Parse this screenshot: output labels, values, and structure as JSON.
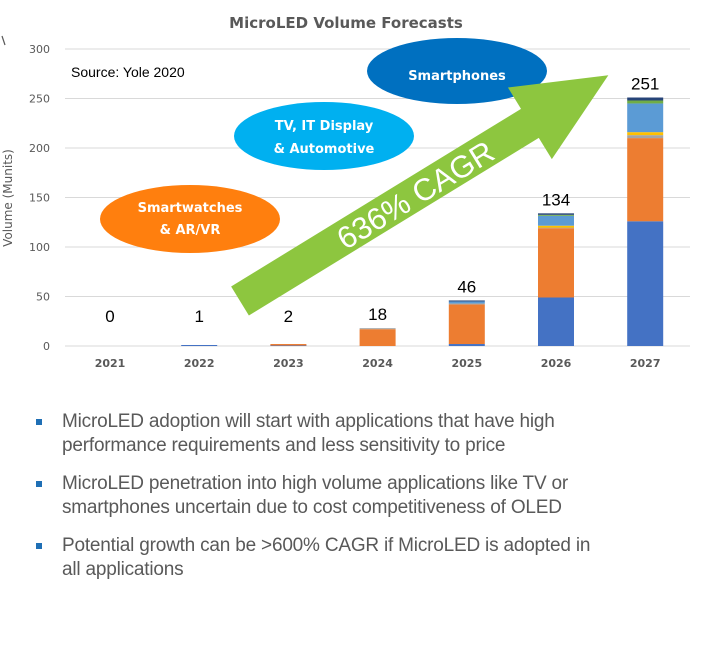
{
  "chart_data": {
    "type": "bar",
    "stacked": true,
    "title": "MicroLED Volume Forecasts",
    "xlabel": "",
    "ylabel": "Volume (Munits)",
    "ylim": [
      0,
      300
    ],
    "yticks": [
      0,
      50,
      100,
      150,
      200,
      250,
      300
    ],
    "grid": true,
    "categories": [
      "2021",
      "2022",
      "2023",
      "2024",
      "2025",
      "2026",
      "2027"
    ],
    "totals": [
      0,
      1,
      2,
      18,
      46,
      134,
      251
    ],
    "series": [
      {
        "name": "Smartphones",
        "color": "#4472c4",
        "values": [
          0,
          1,
          0.5,
          0,
          2,
          49,
          126
        ]
      },
      {
        "name": "Smartwatches & AR/VR",
        "color": "#ed7d31",
        "values": [
          0,
          0,
          1.5,
          17,
          40,
          70,
          84
        ]
      },
      {
        "name": "Gray segment",
        "color": "#a5a5a5",
        "values": [
          0,
          0,
          0,
          1,
          1,
          0.5,
          3
        ]
      },
      {
        "name": "Yellow segment",
        "color": "#ffc000",
        "values": [
          0,
          0,
          0,
          0,
          0,
          2,
          3
        ]
      },
      {
        "name": "TV / IT Display",
        "color": "#5b9bd5",
        "values": [
          0,
          0,
          0,
          0,
          2,
          10,
          29
        ]
      },
      {
        "name": "Green segment",
        "color": "#70ad47",
        "values": [
          0,
          0,
          0,
          0,
          0,
          1,
          3
        ]
      },
      {
        "name": "Dark segment",
        "color": "#264478",
        "values": [
          0,
          0,
          0,
          0,
          1,
          1.5,
          3
        ]
      }
    ],
    "annotations": {
      "source": "Source: Yole 2020",
      "cagr_arrow": {
        "label": "636% CAGR",
        "color": "#8dc63f"
      },
      "bubbles": [
        {
          "label_lines": [
            "Smartwatches",
            "& AR/VR"
          ],
          "color": "#ff7f0e"
        },
        {
          "label_lines": [
            "TV, IT Display",
            "& Automotive"
          ],
          "color": "#00b0f0"
        },
        {
          "label_lines": [
            "Smartphones"
          ],
          "color": "#0070c0"
        }
      ]
    }
  },
  "bullets": [
    {
      "lines": [
        "MicroLED adoption will start with applications that have high",
        "performance requirements and less sensitivity to price"
      ]
    },
    {
      "lines": [
        "MicroLED penetration into high volume applications like TV or",
        "smartphones uncertain due to cost competitiveness of OLED"
      ]
    },
    {
      "lines": [
        "Potential growth can be >600% CAGR if MicroLED is adopted in",
        "all applications"
      ]
    }
  ],
  "colors": {
    "bullet_marker": "#1f6fb5",
    "body_text": "#595959",
    "axis_text": "#595959",
    "gridline": "#d9d9d9"
  }
}
